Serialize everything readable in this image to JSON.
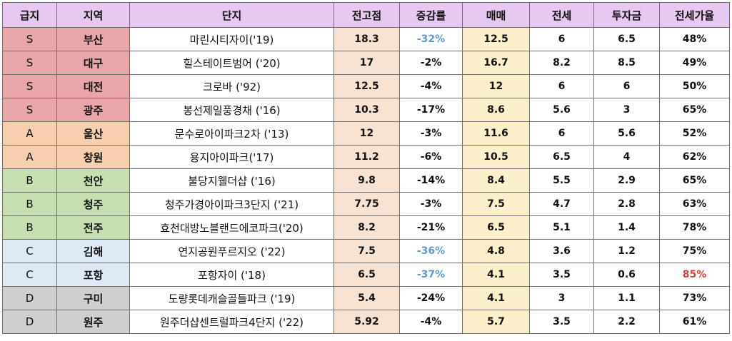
{
  "columns": [
    "급지",
    "지역",
    "단지",
    "전고점",
    "증감률",
    "매매",
    "전세",
    "투자금",
    "전세가율"
  ],
  "tier_colors": {
    "S": "#e8a6a8",
    "A": "#f6cfaf",
    "B": "#c6dfb0",
    "C": "#dde9f5",
    "D": "#cfcfcf"
  },
  "accent_colors": {
    "header": "#e6c8f0",
    "prev_high_bg": "#f8e3d3",
    "sale_bg": "#fcf0cc",
    "highlight_blue": "#5b9bd5",
    "highlight_red": "#e03b3b"
  },
  "rows": [
    {
      "grade": "S",
      "region": "부산",
      "complex": "마린시티자이('19)",
      "prev_high": "18.3",
      "change": "-32%",
      "change_color": "blue",
      "sale": "12.5",
      "jeonse": "6",
      "investment": "6.5",
      "jeonse_ratio": "48%",
      "ratio_color": ""
    },
    {
      "grade": "S",
      "region": "대구",
      "complex": "힐스테이트범어 ('20)",
      "prev_high": "17",
      "change": "-2%",
      "change_color": "",
      "sale": "16.7",
      "jeonse": "8.2",
      "investment": "8.5",
      "jeonse_ratio": "49%",
      "ratio_color": ""
    },
    {
      "grade": "S",
      "region": "대전",
      "complex": "크로바 ('92)",
      "prev_high": "12.5",
      "change": "-4%",
      "change_color": "",
      "sale": "12",
      "jeonse": "6",
      "investment": "6",
      "jeonse_ratio": "50%",
      "ratio_color": ""
    },
    {
      "grade": "S",
      "region": "광주",
      "complex": "봉선제일풍경채 ('16)",
      "prev_high": "10.3",
      "change": "-17%",
      "change_color": "",
      "sale": "8.6",
      "jeonse": "5.6",
      "investment": "3",
      "jeonse_ratio": "65%",
      "ratio_color": ""
    },
    {
      "grade": "A",
      "region": "울산",
      "complex": "문수로아이파크2차 ('13)",
      "prev_high": "12",
      "change": "-3%",
      "change_color": "",
      "sale": "11.6",
      "jeonse": "6",
      "investment": "5.6",
      "jeonse_ratio": "52%",
      "ratio_color": ""
    },
    {
      "grade": "A",
      "region": "창원",
      "complex": "용지아이파크('17)",
      "prev_high": "11.2",
      "change": "-6%",
      "change_color": "",
      "sale": "10.5",
      "jeonse": "6.5",
      "investment": "4",
      "jeonse_ratio": "62%",
      "ratio_color": ""
    },
    {
      "grade": "B",
      "region": "천안",
      "complex": "불당지웰더샵 ('16)",
      "prev_high": "9.8",
      "change": "-14%",
      "change_color": "",
      "sale": "8.4",
      "jeonse": "5.5",
      "investment": "2.9",
      "jeonse_ratio": "65%",
      "ratio_color": ""
    },
    {
      "grade": "B",
      "region": "청주",
      "complex": "청주가경아이파크3단지 ('21)",
      "prev_high": "7.75",
      "change": "-3%",
      "change_color": "",
      "sale": "7.5",
      "jeonse": "4.7",
      "investment": "2.8",
      "jeonse_ratio": "63%",
      "ratio_color": ""
    },
    {
      "grade": "B",
      "region": "전주",
      "complex": "효천대방노블랜드에코파크('20)",
      "prev_high": "8.2",
      "change": "-21%",
      "change_color": "",
      "sale": "6.5",
      "jeonse": "5.1",
      "investment": "1.4",
      "jeonse_ratio": "78%",
      "ratio_color": ""
    },
    {
      "grade": "C",
      "region": "김해",
      "complex": "연지공원푸르지오 ('22)",
      "prev_high": "7.5",
      "change": "-36%",
      "change_color": "blue",
      "sale": "4.8",
      "jeonse": "3.6",
      "investment": "1.2",
      "jeonse_ratio": "75%",
      "ratio_color": ""
    },
    {
      "grade": "C",
      "region": "포항",
      "complex": "포항자이 ('18)",
      "prev_high": "6.5",
      "change": "-37%",
      "change_color": "blue",
      "sale": "4.1",
      "jeonse": "3.5",
      "investment": "0.6",
      "jeonse_ratio": "85%",
      "ratio_color": "red"
    },
    {
      "grade": "D",
      "region": "구미",
      "complex": "도량롯데캐슬골들파크 ('19)",
      "prev_high": "5.4",
      "change": "-24%",
      "change_color": "",
      "sale": "4.1",
      "jeonse": "3",
      "investment": "1.1",
      "jeonse_ratio": "73%",
      "ratio_color": ""
    },
    {
      "grade": "D",
      "region": "원주",
      "complex": "원주더샵센트럴파크4단지 ('22)",
      "prev_high": "5.92",
      "change": "-4%",
      "change_color": "",
      "sale": "5.7",
      "jeonse": "3.5",
      "investment": "2.2",
      "jeonse_ratio": "61%",
      "ratio_color": ""
    }
  ]
}
